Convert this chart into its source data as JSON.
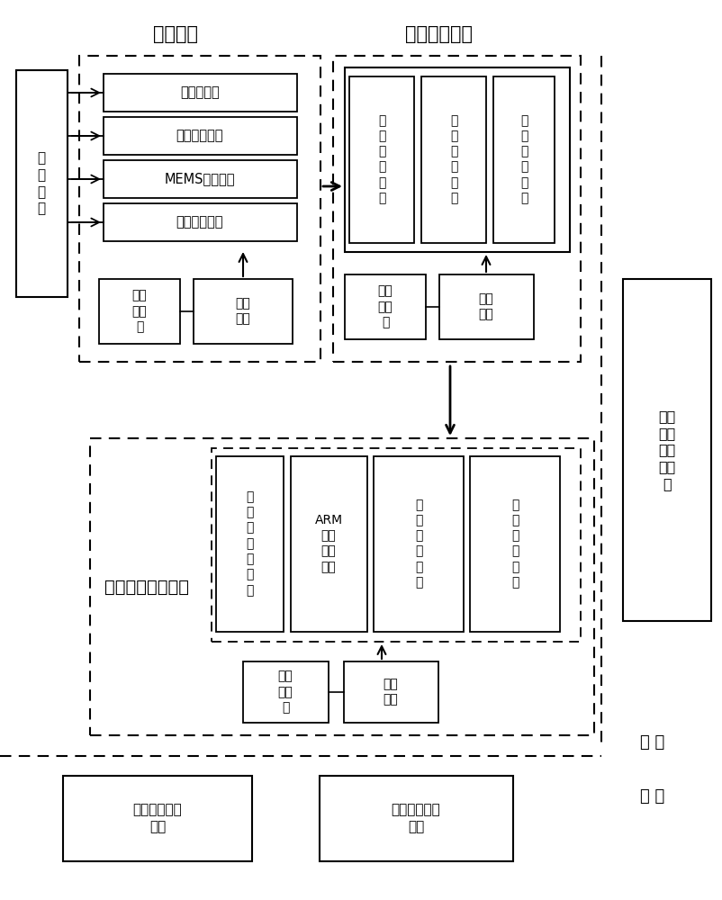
{
  "bg_color": "#ffffff",
  "title_sensing": "传感模块",
  "title_data_acq": "数据采集模块",
  "label_jiazhun": "校\n准\n模\n块",
  "label_sensor1": "声呐传感器",
  "label_sensor2": "超声波传感器",
  "label_sensor3": "MEMS传感模块",
  "label_sensor4": "测速测距模块",
  "label_battery1": "可充\n电电\n池",
  "label_power1": "电源\n电路",
  "label_acq1": "数\n据\n采\n集\n装\n置",
  "label_acq2": "数\n据\n打\n包\n装\n置",
  "label_acq3": "数\n据\n发\n送\n装\n置",
  "label_battery2": "可充\n电电\n池",
  "label_power2": "电源\n电路",
  "label_proc1": "数\n据\n接\n收\n及\n分\n包",
  "label_proc2": "ARM\n多功\n能处\n理器",
  "label_proc3": "数\n据\n打\n包\n装\n置",
  "label_proc4": "数\n据\n存\n储\n装\n置",
  "label_battery3": "可充\n电电\n池",
  "label_power3": "电源\n电路",
  "label_multi": "多模复合处理模块",
  "label_zizhu": "自主\n牵引\n及运\n动平\n台",
  "label_pipeline": "管线航迹定位\n显示",
  "label_offline": "离线轨迹生成\n模块",
  "label_xianshang": "线 上",
  "label_xianxia": "线 下"
}
